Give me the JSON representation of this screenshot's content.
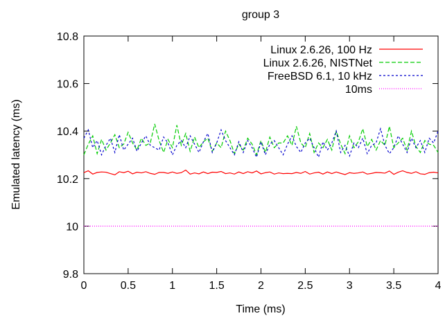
{
  "chart_data": {
    "type": "line",
    "title": "group 3",
    "xlabel": "Time (ms)",
    "ylabel": "Emulated latency (ms)",
    "xlim": [
      0,
      4
    ],
    "ylim": [
      9.8,
      10.8
    ],
    "xticks": [
      "0",
      "0.5",
      "1",
      "1.5",
      "2",
      "2.5",
      "3",
      "3.5",
      "4"
    ],
    "yticks": [
      "9.8",
      "10",
      "10.2",
      "10.4",
      "10.6",
      "10.8"
    ],
    "grid": false,
    "legend_position": "top-right",
    "series": [
      {
        "name": "Linux 2.6.26, 100 Hz",
        "color": "#ff0000",
        "dash": "solid",
        "x": [
          0,
          0.05,
          0.1,
          0.15,
          0.2,
          0.25,
          0.3,
          0.35,
          0.4,
          0.45,
          0.5,
          0.55,
          0.6,
          0.65,
          0.7,
          0.75,
          0.8,
          0.85,
          0.9,
          0.95,
          1,
          1.05,
          1.1,
          1.15,
          1.2,
          1.25,
          1.3,
          1.35,
          1.4,
          1.45,
          1.5,
          1.55,
          1.6,
          1.65,
          1.7,
          1.75,
          1.8,
          1.85,
          1.9,
          1.95,
          2,
          2.05,
          2.1,
          2.15,
          2.2,
          2.25,
          2.3,
          2.35,
          2.4,
          2.45,
          2.5,
          2.55,
          2.6,
          2.65,
          2.7,
          2.75,
          2.8,
          2.85,
          2.9,
          2.95,
          3,
          3.05,
          3.1,
          3.15,
          3.2,
          3.25,
          3.3,
          3.35,
          3.4,
          3.45,
          3.5,
          3.55,
          3.6,
          3.65,
          3.7,
          3.75,
          3.8,
          3.85,
          3.9,
          3.95,
          4
        ],
        "values": [
          10.225,
          10.233,
          10.219,
          10.226,
          10.228,
          10.227,
          10.221,
          10.216,
          10.229,
          10.225,
          10.231,
          10.22,
          10.227,
          10.224,
          10.229,
          10.222,
          10.218,
          10.226,
          10.226,
          10.222,
          10.228,
          10.222,
          10.225,
          10.236,
          10.219,
          10.224,
          10.22,
          10.228,
          10.221,
          10.227,
          10.226,
          10.23,
          10.221,
          10.224,
          10.219,
          10.228,
          10.221,
          10.229,
          10.224,
          10.232,
          10.22,
          10.225,
          10.228,
          10.219,
          10.224,
          10.221,
          10.222,
          10.221,
          10.226,
          10.222,
          10.23,
          10.219,
          10.224,
          10.227,
          10.219,
          10.228,
          10.221,
          10.228,
          10.222,
          10.217,
          10.225,
          10.222,
          10.224,
          10.228,
          10.219,
          10.222,
          10.226,
          10.225,
          10.223,
          10.232,
          10.218,
          10.227,
          10.233,
          10.226,
          10.222,
          10.229,
          10.22,
          10.218,
          10.225,
          10.227,
          10.224
        ]
      },
      {
        "name": "Linux 2.6.26, NISTNet",
        "color": "#00cc00",
        "dash": "long",
        "x": [
          0,
          0.05,
          0.1,
          0.15,
          0.2,
          0.25,
          0.3,
          0.35,
          0.4,
          0.45,
          0.5,
          0.55,
          0.6,
          0.65,
          0.7,
          0.75,
          0.8,
          0.85,
          0.9,
          0.95,
          1,
          1.05,
          1.1,
          1.15,
          1.2,
          1.25,
          1.3,
          1.35,
          1.4,
          1.45,
          1.5,
          1.55,
          1.6,
          1.65,
          1.7,
          1.75,
          1.8,
          1.85,
          1.9,
          1.95,
          2,
          2.05,
          2.1,
          2.15,
          2.2,
          2.25,
          2.3,
          2.35,
          2.4,
          2.45,
          2.5,
          2.55,
          2.6,
          2.65,
          2.7,
          2.75,
          2.8,
          2.85,
          2.9,
          2.95,
          3,
          3.05,
          3.1,
          3.15,
          3.2,
          3.25,
          3.3,
          3.35,
          3.4,
          3.45,
          3.5,
          3.55,
          3.6,
          3.65,
          3.7,
          3.75,
          3.8,
          3.85,
          3.9,
          3.95,
          4
        ],
        "values": [
          10.3,
          10.345,
          10.38,
          10.305,
          10.365,
          10.32,
          10.35,
          10.385,
          10.33,
          10.345,
          10.395,
          10.35,
          10.32,
          10.37,
          10.34,
          10.35,
          10.43,
          10.36,
          10.31,
          10.365,
          10.33,
          10.425,
          10.34,
          10.39,
          10.315,
          10.375,
          10.33,
          10.355,
          10.37,
          10.315,
          10.35,
          10.33,
          10.4,
          10.36,
          10.305,
          10.345,
          10.32,
          10.37,
          10.345,
          10.3,
          10.36,
          10.31,
          10.375,
          10.33,
          10.35,
          10.35,
          10.38,
          10.34,
          10.42,
          10.35,
          10.33,
          10.39,
          10.31,
          10.35,
          10.33,
          10.365,
          10.32,
          10.4,
          10.345,
          10.305,
          10.38,
          10.33,
          10.355,
          10.41,
          10.335,
          10.365,
          10.32,
          10.36,
          10.34,
          10.42,
          10.33,
          10.35,
          10.37,
          10.32,
          10.4,
          10.335,
          10.31,
          10.36,
          10.345,
          10.34,
          10.31
        ]
      },
      {
        "name": "FreeBSD 6.1, 10 kHz",
        "color": "#0000cc",
        "dash": "short",
        "x": [
          0,
          0.05,
          0.1,
          0.15,
          0.2,
          0.25,
          0.3,
          0.35,
          0.4,
          0.45,
          0.5,
          0.55,
          0.6,
          0.65,
          0.7,
          0.75,
          0.8,
          0.85,
          0.9,
          0.95,
          1,
          1.05,
          1.1,
          1.15,
          1.2,
          1.25,
          1.3,
          1.35,
          1.4,
          1.45,
          1.5,
          1.55,
          1.6,
          1.65,
          1.7,
          1.75,
          1.8,
          1.85,
          1.9,
          1.95,
          2,
          2.05,
          2.1,
          2.15,
          2.2,
          2.25,
          2.3,
          2.35,
          2.4,
          2.45,
          2.5,
          2.55,
          2.6,
          2.65,
          2.7,
          2.75,
          2.8,
          2.85,
          2.9,
          2.95,
          3,
          3.05,
          3.1,
          3.15,
          3.2,
          3.25,
          3.3,
          3.35,
          3.4,
          3.45,
          3.5,
          3.55,
          3.6,
          3.65,
          3.7,
          3.75,
          3.8,
          3.85,
          3.9,
          3.95,
          4
        ],
        "values": [
          10.37,
          10.405,
          10.33,
          10.36,
          10.3,
          10.34,
          10.37,
          10.31,
          10.385,
          10.32,
          10.345,
          10.37,
          10.315,
          10.35,
          10.38,
          10.34,
          10.33,
          10.32,
          10.375,
          10.35,
          10.3,
          10.34,
          10.36,
          10.33,
          10.38,
          10.345,
          10.31,
          10.355,
          10.39,
          10.31,
          10.35,
          10.405,
          10.36,
          10.33,
          10.3,
          10.355,
          10.31,
          10.36,
          10.33,
          10.29,
          10.355,
          10.3,
          10.345,
          10.36,
          10.33,
          10.3,
          10.345,
          10.38,
          10.335,
          10.31,
          10.35,
          10.37,
          10.33,
          10.29,
          10.355,
          10.32,
          10.35,
          10.4,
          10.31,
          10.34,
          10.295,
          10.35,
          10.33,
          10.37,
          10.305,
          10.34,
          10.35,
          10.41,
          10.34,
          10.305,
          10.33,
          10.38,
          10.345,
          10.31,
          10.37,
          10.33,
          10.36,
          10.31,
          10.37,
          10.35,
          10.4
        ]
      },
      {
        "name": "10ms",
        "color": "#ff00ff",
        "dash": "dotted",
        "x": [
          0,
          4
        ],
        "values": [
          10.0,
          10.0
        ]
      }
    ]
  }
}
